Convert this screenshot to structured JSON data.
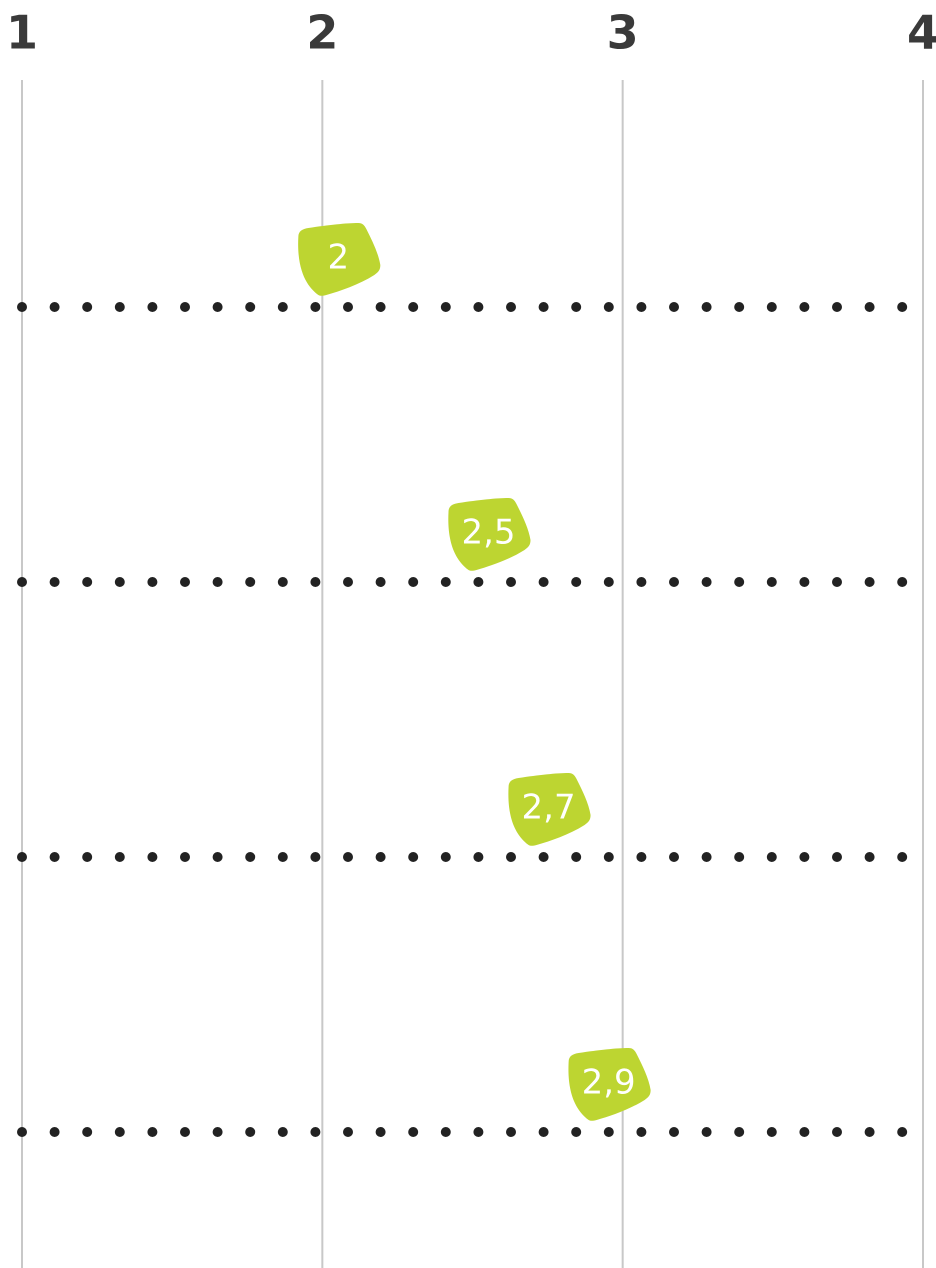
{
  "chart_data": {
    "type": "dot",
    "xlim": [
      1,
      4
    ],
    "xticks": [
      1,
      2,
      3,
      4
    ],
    "grid": true,
    "values": [
      2,
      2.5,
      2.7,
      2.9
    ],
    "value_labels": [
      "2",
      "2,5",
      "2,7",
      "2,9"
    ],
    "color": "#bdd531"
  }
}
